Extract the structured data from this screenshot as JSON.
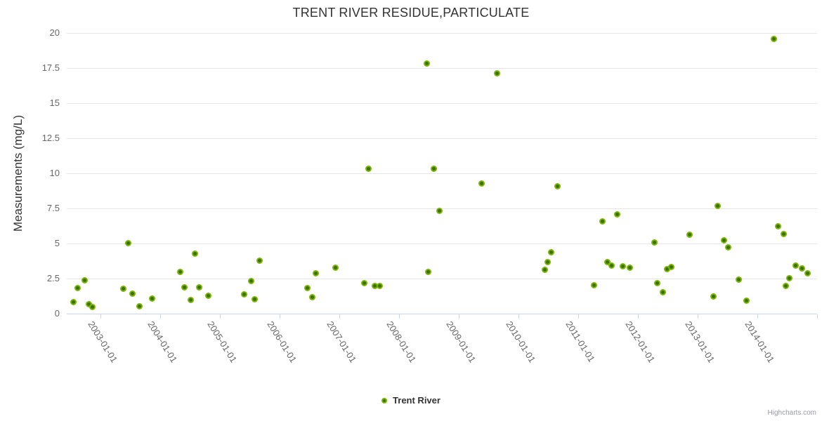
{
  "title": "TRENT RIVER RESIDUE,PARTICULATE",
  "legend": {
    "label": "Trent River"
  },
  "credits": "Highcharts.com",
  "colors": {
    "marker_ring": "#77b600",
    "marker_core": "#3e6f00",
    "gridline": "#e6e6e6",
    "axis_line": "#ccd6eb",
    "title_text": "#333333",
    "label_text": "#666666",
    "credits_text": "#999aa8"
  },
  "chart_data": {
    "type": "scatter",
    "title": "TRENT RIVER RESIDUE,PARTICULATE",
    "xlabel": "",
    "ylabel": "Measurements (mg/L)",
    "ylim": [
      0,
      20
    ],
    "xlim_years": [
      2002.435,
      2015.0
    ],
    "grid": true,
    "legend_position": "bottom-center",
    "y_ticks": [
      0,
      2.5,
      5,
      7.5,
      10,
      12.5,
      15,
      17.5,
      20
    ],
    "x_ticks": [
      {
        "year": 2003,
        "label": "2003-01-01"
      },
      {
        "year": 2004,
        "label": "2004-01-01"
      },
      {
        "year": 2005,
        "label": "2005-01-01"
      },
      {
        "year": 2006,
        "label": "2006-01-01"
      },
      {
        "year": 2007,
        "label": "2007-01-01"
      },
      {
        "year": 2008,
        "label": "2008-01-01"
      },
      {
        "year": 2009,
        "label": "2009-01-01"
      },
      {
        "year": 2010,
        "label": "2010-01-01"
      },
      {
        "year": 2011,
        "label": "2011-01-01"
      },
      {
        "year": 2012,
        "label": "2012-01-01"
      },
      {
        "year": 2013,
        "label": "2013-01-01"
      },
      {
        "year": 2014,
        "label": "2014-01-01"
      },
      {
        "year": 2015,
        "label": ""
      }
    ],
    "series": [
      {
        "name": "Trent River",
        "points": [
          {
            "t": 2002.55,
            "v": 0.85
          },
          {
            "t": 2002.62,
            "v": 1.85
          },
          {
            "t": 2002.73,
            "v": 2.4
          },
          {
            "t": 2002.8,
            "v": 0.7
          },
          {
            "t": 2002.87,
            "v": 0.5
          },
          {
            "t": 2003.38,
            "v": 1.8
          },
          {
            "t": 2003.46,
            "v": 5.05
          },
          {
            "t": 2003.53,
            "v": 1.45
          },
          {
            "t": 2003.65,
            "v": 0.55
          },
          {
            "t": 2003.86,
            "v": 1.1
          },
          {
            "t": 2004.33,
            "v": 3.0
          },
          {
            "t": 2004.41,
            "v": 1.9
          },
          {
            "t": 2004.51,
            "v": 1.0
          },
          {
            "t": 2004.58,
            "v": 4.3
          },
          {
            "t": 2004.65,
            "v": 1.9
          },
          {
            "t": 2004.81,
            "v": 1.3
          },
          {
            "t": 2005.41,
            "v": 1.4
          },
          {
            "t": 2005.52,
            "v": 2.35
          },
          {
            "t": 2005.58,
            "v": 1.05
          },
          {
            "t": 2005.66,
            "v": 3.8
          },
          {
            "t": 2006.47,
            "v": 1.85
          },
          {
            "t": 2006.55,
            "v": 1.2
          },
          {
            "t": 2006.6,
            "v": 2.9
          },
          {
            "t": 2006.94,
            "v": 3.3
          },
          {
            "t": 2007.42,
            "v": 2.2
          },
          {
            "t": 2007.49,
            "v": 10.35
          },
          {
            "t": 2007.59,
            "v": 2.0
          },
          {
            "t": 2007.68,
            "v": 2.0
          },
          {
            "t": 2008.46,
            "v": 17.85
          },
          {
            "t": 2008.49,
            "v": 3.0
          },
          {
            "t": 2008.58,
            "v": 10.35
          },
          {
            "t": 2008.68,
            "v": 7.35
          },
          {
            "t": 2009.38,
            "v": 9.3
          },
          {
            "t": 2009.64,
            "v": 17.15
          },
          {
            "t": 2010.44,
            "v": 3.15
          },
          {
            "t": 2010.49,
            "v": 3.7
          },
          {
            "t": 2010.55,
            "v": 4.4
          },
          {
            "t": 2010.65,
            "v": 9.1
          },
          {
            "t": 2011.27,
            "v": 2.05
          },
          {
            "t": 2011.4,
            "v": 6.6
          },
          {
            "t": 2011.49,
            "v": 3.7
          },
          {
            "t": 2011.56,
            "v": 3.45
          },
          {
            "t": 2011.65,
            "v": 7.1
          },
          {
            "t": 2011.75,
            "v": 3.4
          },
          {
            "t": 2011.86,
            "v": 3.3
          },
          {
            "t": 2012.28,
            "v": 5.1
          },
          {
            "t": 2012.32,
            "v": 2.2
          },
          {
            "t": 2012.42,
            "v": 1.55
          },
          {
            "t": 2012.49,
            "v": 3.2
          },
          {
            "t": 2012.56,
            "v": 3.35
          },
          {
            "t": 2012.87,
            "v": 5.65
          },
          {
            "t": 2013.26,
            "v": 1.25
          },
          {
            "t": 2013.34,
            "v": 7.7
          },
          {
            "t": 2013.44,
            "v": 5.25
          },
          {
            "t": 2013.51,
            "v": 4.75
          },
          {
            "t": 2013.69,
            "v": 2.45
          },
          {
            "t": 2013.82,
            "v": 0.95
          },
          {
            "t": 2014.28,
            "v": 19.6
          },
          {
            "t": 2014.35,
            "v": 6.25
          },
          {
            "t": 2014.44,
            "v": 5.7
          },
          {
            "t": 2014.48,
            "v": 2.0
          },
          {
            "t": 2014.53,
            "v": 2.55
          },
          {
            "t": 2014.64,
            "v": 3.45
          },
          {
            "t": 2014.75,
            "v": 3.25
          },
          {
            "t": 2014.84,
            "v": 2.9
          }
        ]
      }
    ]
  }
}
